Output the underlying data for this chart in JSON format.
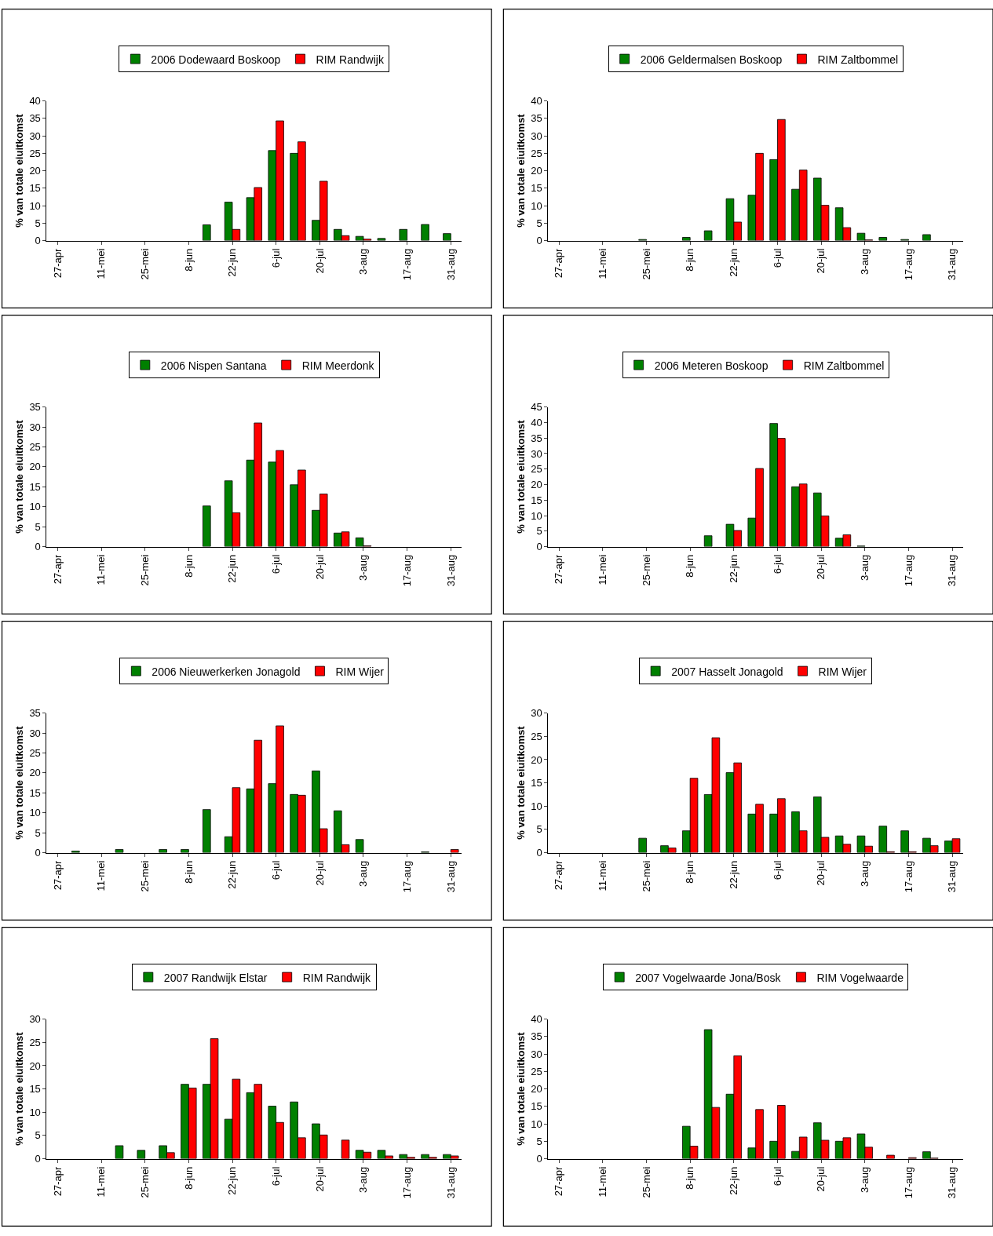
{
  "chart_data": [
    {
      "type": "bar",
      "categories": [
        "27-apr",
        null,
        "11-mei",
        null,
        "25-mei",
        null,
        "8-jun",
        null,
        "22-jun",
        null,
        "6-jul",
        null,
        "20-jul",
        null,
        "3-aug",
        null,
        "17-aug",
        null,
        "31-aug"
      ],
      "ylabel": "% van totale eiuitkomst",
      "ylim": [
        0,
        40
      ],
      "yticks": [
        0,
        5,
        10,
        15,
        20,
        25,
        30,
        35,
        40
      ],
      "legend": "top",
      "series": [
        {
          "name": "2006 Dodewaard Boskoop",
          "color": "#008000",
          "values": [
            null,
            null,
            null,
            null,
            null,
            null,
            null,
            4.5,
            11,
            12.3,
            25.8,
            25,
            5.8,
            3.2,
            1.2,
            0.6,
            3.2,
            4.6,
            2
          ]
        },
        {
          "name": "RIM Randwijk",
          "color": "#ff0000",
          "values": [
            null,
            null,
            null,
            null,
            null,
            null,
            null,
            null,
            3.2,
            15.2,
            34.3,
            28.3,
            17,
            1.4,
            0.4,
            null,
            null,
            null,
            null
          ]
        }
      ]
    },
    {
      "type": "bar",
      "categories": [
        "27-apr",
        null,
        "11-mei",
        null,
        "25-mei",
        null,
        "8-jun",
        null,
        "22-jun",
        null,
        "6-jul",
        null,
        "20-jul",
        null,
        "3-aug",
        null,
        "17-aug",
        null,
        "31-aug"
      ],
      "ylabel": "% van totale eiuitkomst",
      "ylim": [
        0,
        40
      ],
      "yticks": [
        0,
        5,
        10,
        15,
        20,
        25,
        30,
        35,
        40
      ],
      "legend": "top",
      "series": [
        {
          "name": "2006 Geldermalsen Boskoop",
          "color": "#008000",
          "values": [
            null,
            null,
            null,
            null,
            0.3,
            null,
            0.9,
            2.8,
            12,
            13,
            23.2,
            14.7,
            17.9,
            9.4,
            2.1,
            0.9,
            0.3,
            1.7,
            null
          ]
        },
        {
          "name": "RIM Zaltbommel",
          "color": "#ff0000",
          "values": [
            null,
            null,
            null,
            null,
            null,
            null,
            null,
            null,
            5.3,
            25,
            34.7,
            20.2,
            10.1,
            3.7,
            0.2,
            null,
            null,
            null,
            null
          ]
        }
      ]
    },
    {
      "type": "bar",
      "categories": [
        "27-apr",
        null,
        "11-mei",
        null,
        "25-mei",
        null,
        "8-jun",
        null,
        "22-jun",
        null,
        "6-jul",
        null,
        "20-jul",
        null,
        "3-aug",
        null,
        "17-aug",
        null,
        "31-aug"
      ],
      "ylabel": "% van totale eiuitkomst",
      "ylim": [
        0,
        35
      ],
      "yticks": [
        0,
        5,
        10,
        15,
        20,
        25,
        30,
        35
      ],
      "legend": "top",
      "series": [
        {
          "name": "2006 Nispen Santana",
          "color": "#008000",
          "values": [
            null,
            null,
            null,
            null,
            null,
            null,
            null,
            10.2,
            16.5,
            21.7,
            21.2,
            15.5,
            9.1,
            3.4,
            2.2,
            null,
            null,
            null,
            null
          ]
        },
        {
          "name": "RIM Meerdonk",
          "color": "#ff0000",
          "values": [
            null,
            null,
            null,
            null,
            null,
            null,
            null,
            null,
            8.5,
            31,
            24.1,
            19.2,
            13.2,
            3.7,
            0.2,
            null,
            null,
            null,
            null
          ]
        }
      ]
    },
    {
      "type": "bar",
      "categories": [
        "27-apr",
        null,
        "11-mei",
        null,
        "25-mei",
        null,
        "8-jun",
        null,
        "22-jun",
        null,
        "6-jul",
        null,
        "20-jul",
        null,
        "3-aug",
        null,
        "17-aug",
        null,
        "31-aug"
      ],
      "ylabel": "% van totale eiuitkomst",
      "ylim": [
        0,
        45
      ],
      "yticks": [
        0,
        5,
        10,
        15,
        20,
        25,
        30,
        35,
        40,
        45
      ],
      "legend": "top",
      "series": [
        {
          "name": "2006 Meteren Boskoop",
          "color": "#008000",
          "values": [
            null,
            null,
            null,
            null,
            null,
            null,
            null,
            3.5,
            7.2,
            9.2,
            39.7,
            19.3,
            17.3,
            2.7,
            0.2,
            null,
            null,
            null,
            null
          ]
        },
        {
          "name": "RIM Zaltbommel",
          "color": "#ff0000",
          "values": [
            null,
            null,
            null,
            null,
            null,
            null,
            null,
            null,
            5.2,
            25.2,
            34.9,
            20.2,
            9.9,
            3.8,
            null,
            null,
            null,
            null,
            null
          ]
        }
      ]
    },
    {
      "type": "bar",
      "categories": [
        "27-apr",
        null,
        "11-mei",
        null,
        "25-mei",
        null,
        "8-jun",
        null,
        "22-jun",
        null,
        "6-jul",
        null,
        "20-jul",
        null,
        "3-aug",
        null,
        "17-aug",
        null,
        "31-aug"
      ],
      "ylabel": "% van totale eiuitkomst",
      "ylim": [
        0,
        35
      ],
      "yticks": [
        0,
        5,
        10,
        15,
        20,
        25,
        30,
        35
      ],
      "legend": "top",
      "series": [
        {
          "name": "2006 Nieuwerkerken Jonagold",
          "color": "#008000",
          "values": [
            null,
            0.4,
            null,
            0.8,
            null,
            0.8,
            0.8,
            10.8,
            4,
            16,
            17.3,
            14.6,
            20.5,
            10.5,
            3.3,
            null,
            null,
            0.2,
            null
          ]
        },
        {
          "name": "RIM Wijer",
          "color": "#ff0000",
          "values": [
            null,
            null,
            null,
            null,
            null,
            null,
            null,
            null,
            16.3,
            28.2,
            31.8,
            14.4,
            6,
            2,
            null,
            null,
            null,
            null,
            0.8
          ]
        }
      ]
    },
    {
      "type": "bar",
      "categories": [
        "27-apr",
        null,
        "11-mei",
        null,
        "25-mei",
        null,
        "8-jun",
        null,
        "22-jun",
        null,
        "6-jul",
        null,
        "20-jul",
        null,
        "3-aug",
        null,
        "17-aug",
        null,
        "31-aug"
      ],
      "ylabel": "% van totale eiuitkomst",
      "ylim": [
        0,
        30
      ],
      "yticks": [
        0,
        5,
        10,
        15,
        20,
        25,
        30
      ],
      "legend": "top",
      "series": [
        {
          "name": "2007 Hasselt Jonagold",
          "color": "#008000",
          "values": [
            null,
            null,
            null,
            null,
            3.1,
            1.5,
            4.7,
            12.5,
            17.2,
            8.3,
            8.3,
            8.8,
            12,
            3.6,
            3.6,
            5.7,
            4.7,
            3.1,
            2.5
          ]
        },
        {
          "name": "RIM Wijer",
          "color": "#ff0000",
          "values": [
            null,
            null,
            null,
            null,
            null,
            1,
            16,
            24.7,
            19.3,
            10.4,
            11.6,
            4.7,
            3.3,
            1.8,
            1.4,
            0.2,
            0.2,
            1.5,
            3
          ]
        }
      ]
    },
    {
      "type": "bar",
      "categories": [
        "27-apr",
        null,
        "11-mei",
        null,
        "25-mei",
        null,
        "8-jun",
        null,
        "22-jun",
        null,
        "6-jul",
        null,
        "20-jul",
        null,
        "3-aug",
        null,
        "17-aug",
        null,
        "31-aug"
      ],
      "ylabel": "% van totale eiuitkomst",
      "ylim": [
        0,
        30
      ],
      "yticks": [
        0,
        5,
        10,
        15,
        20,
        25,
        30
      ],
      "legend": "top",
      "series": [
        {
          "name": "2007 Randwijk Elstar",
          "color": "#008000",
          "values": [
            null,
            null,
            null,
            2.8,
            1.8,
            2.8,
            16,
            16,
            8.5,
            14.2,
            11.3,
            12.2,
            7.5,
            null,
            1.8,
            1.8,
            0.9,
            0.9,
            0.9
          ]
        },
        {
          "name": "RIM Randwijk",
          "color": "#ff0000",
          "values": [
            null,
            null,
            null,
            null,
            null,
            1.3,
            15.2,
            25.8,
            17.1,
            16,
            7.8,
            4.5,
            5.1,
            4,
            1.4,
            0.6,
            0.3,
            0.3,
            0.6
          ]
        }
      ]
    },
    {
      "type": "bar",
      "categories": [
        "27-apr",
        null,
        "11-mei",
        null,
        "25-mei",
        null,
        "8-jun",
        null,
        "22-jun",
        null,
        "6-jul",
        null,
        "20-jul",
        null,
        "3-aug",
        null,
        "17-aug",
        null,
        "31-aug"
      ],
      "ylabel": "% van totale eiuitkomst",
      "ylim": [
        0,
        40
      ],
      "yticks": [
        0,
        5,
        10,
        15,
        20,
        25,
        30,
        35,
        40
      ],
      "legend": "top",
      "series": [
        {
          "name": "2007 Vogelwaarde Jona/Bosk",
          "color": "#008000",
          "values": [
            null,
            null,
            null,
            null,
            null,
            null,
            9.3,
            37,
            18.5,
            3.1,
            5,
            2.1,
            10.3,
            5,
            7.1,
            null,
            null,
            2,
            null
          ]
        },
        {
          "name": "RIM Vogelwaarde",
          "color": "#ff0000",
          "values": [
            null,
            null,
            null,
            null,
            null,
            null,
            3.6,
            14.7,
            29.5,
            14.1,
            15.3,
            6.2,
            5.3,
            6,
            3.3,
            1,
            0.3,
            0.2,
            null
          ]
        }
      ]
    }
  ]
}
